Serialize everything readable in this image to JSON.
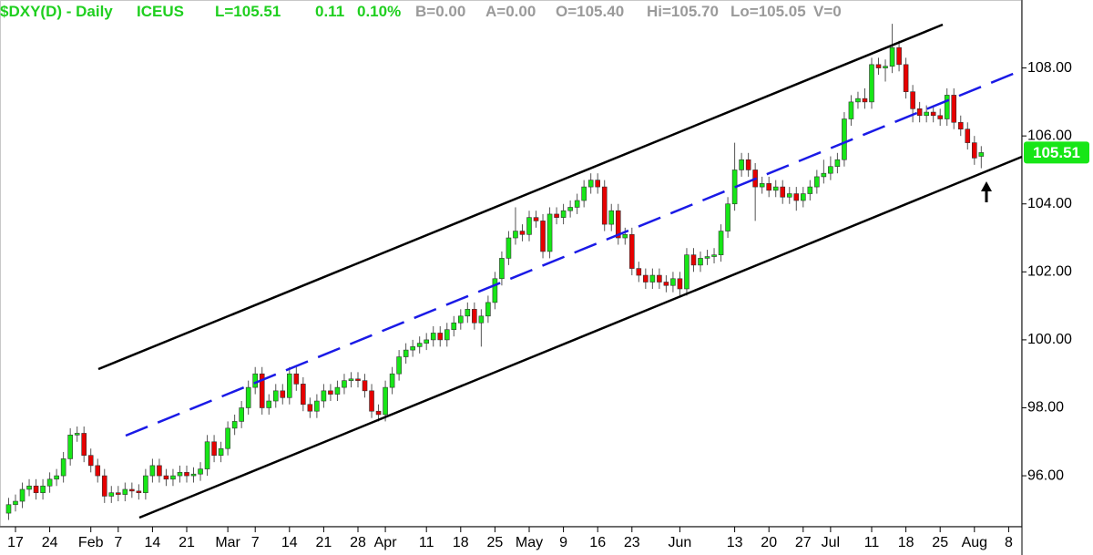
{
  "header": {
    "symbol": "$DXY(D) - Daily",
    "exchange": "ICEUS",
    "last": "L=105.51",
    "change": "0.11",
    "change_pct": "0.10%",
    "bid": "B=0.00",
    "ask": "A=0.00",
    "open": "O=105.40",
    "high": "Hi=105.70",
    "low": "Lo=105.05",
    "volume": "V=0"
  },
  "chart_data": {
    "type": "candlestick",
    "up_color": "#17e617",
    "down_color": "#e60000",
    "ylim": [
      94.5,
      110
    ],
    "yticks": [
      {
        "value": 96,
        "label": "96.00"
      },
      {
        "value": 98,
        "label": "98.00"
      },
      {
        "value": 100,
        "label": "100.00"
      },
      {
        "value": 102,
        "label": "102.00"
      },
      {
        "value": 104,
        "label": "104.00"
      },
      {
        "value": 106,
        "label": "106.00"
      },
      {
        "value": 108,
        "label": "108.00"
      }
    ],
    "categories": [
      null,
      "17",
      null,
      null,
      null,
      null,
      "24",
      null,
      null,
      null,
      null,
      null,
      "Feb",
      null,
      null,
      null,
      "7",
      null,
      null,
      null,
      null,
      "14",
      null,
      null,
      null,
      null,
      "21",
      null,
      null,
      null,
      null,
      null,
      "Mar",
      null,
      null,
      null,
      "7",
      null,
      null,
      null,
      null,
      "14",
      null,
      null,
      null,
      null,
      "21",
      null,
      null,
      null,
      null,
      "28",
      null,
      null,
      null,
      "Apr",
      null,
      null,
      null,
      null,
      null,
      "11",
      null,
      null,
      null,
      null,
      "18",
      null,
      null,
      null,
      null,
      "25",
      null,
      null,
      null,
      null,
      "May",
      null,
      null,
      null,
      null,
      "9",
      null,
      null,
      null,
      null,
      "16",
      null,
      null,
      null,
      null,
      "23",
      null,
      null,
      null,
      null,
      null,
      null,
      "Jun",
      null,
      null,
      null,
      null,
      null,
      null,
      null,
      "13",
      null,
      null,
      null,
      null,
      "20",
      null,
      null,
      null,
      null,
      "27",
      null,
      null,
      null,
      "Jul",
      null,
      null,
      null,
      null,
      null,
      "11",
      null,
      null,
      null,
      null,
      "18",
      null,
      null,
      null,
      null,
      "25",
      null,
      null,
      null,
      null,
      "Aug",
      null,
      null,
      null,
      null,
      "8"
    ],
    "open": [
      94.9,
      95.15,
      95.25,
      95.6,
      95.7,
      95.5,
      95.7,
      95.9,
      96.0,
      96.5,
      97.2,
      97.25,
      96.6,
      96.3,
      96.0,
      95.4,
      95.5,
      95.45,
      95.6,
      95.55,
      95.5,
      96.0,
      96.3,
      96.0,
      95.9,
      96.0,
      96.1,
      96.0,
      96.05,
      96.2,
      97.0,
      96.6,
      96.8,
      97.4,
      97.6,
      98.0,
      98.6,
      99.0,
      98.0,
      98.2,
      98.5,
      98.3,
      99.0,
      98.7,
      98.1,
      97.9,
      98.2,
      98.5,
      98.4,
      98.6,
      98.8,
      98.85,
      98.8,
      98.5,
      97.9,
      97.8,
      98.6,
      99.0,
      99.5,
      99.7,
      99.8,
      99.9,
      100.0,
      100.2,
      100.0,
      100.3,
      100.5,
      100.7,
      100.9,
      100.5,
      100.7,
      101.1,
      101.8,
      102.4,
      103.0,
      103.2,
      103.1,
      103.6,
      103.5,
      102.6,
      103.7,
      103.6,
      103.8,
      103.9,
      104.1,
      104.5,
      104.7,
      104.5,
      103.4,
      103.8,
      103.0,
      103.1,
      102.1,
      101.9,
      101.7,
      101.9,
      101.7,
      101.6,
      101.8,
      101.5,
      102.5,
      102.2,
      102.4,
      102.45,
      102.5,
      103.2,
      104.0,
      105.0,
      105.3,
      105.0,
      104.5,
      104.6,
      104.4,
      104.5,
      104.2,
      104.3,
      104.1,
      104.3,
      104.5,
      104.8,
      104.9,
      105.1,
      105.3,
      106.5,
      107.0,
      107.1,
      107.0,
      108.1,
      108.0,
      108.05,
      108.6,
      108.1,
      107.3,
      106.8,
      106.6,
      106.7,
      106.6,
      106.5,
      107.2,
      106.4,
      106.2,
      105.8,
      105.4,
      null,
      null,
      null,
      null
    ],
    "high": [
      95.35,
      95.45,
      95.8,
      95.9,
      95.9,
      95.9,
      96.1,
      96.2,
      96.7,
      97.4,
      97.45,
      97.45,
      96.8,
      96.5,
      96.2,
      95.7,
      95.7,
      95.8,
      95.8,
      95.75,
      96.2,
      96.5,
      96.5,
      96.2,
      96.2,
      96.3,
      96.3,
      96.25,
      96.4,
      97.2,
      97.2,
      97.0,
      97.6,
      97.8,
      98.2,
      98.8,
      99.2,
      99.2,
      98.4,
      98.7,
      98.7,
      99.2,
      99.2,
      98.9,
      98.3,
      98.4,
      98.7,
      98.7,
      98.8,
      99.0,
      99.05,
      99.05,
      99.0,
      98.7,
      98.1,
      98.8,
      99.2,
      99.7,
      99.9,
      100.0,
      100.1,
      100.2,
      100.4,
      100.4,
      100.5,
      100.7,
      100.9,
      101.1,
      101.1,
      100.9,
      101.3,
      102.0,
      102.6,
      103.2,
      103.9,
      103.4,
      103.8,
      103.8,
      103.7,
      103.9,
      103.9,
      104.0,
      104.1,
      104.3,
      104.7,
      104.9,
      104.9,
      104.7,
      104.0,
      104.0,
      103.3,
      103.3,
      102.3,
      102.1,
      102.1,
      102.1,
      101.9,
      102.0,
      102.0,
      102.7,
      102.7,
      102.6,
      102.65,
      102.7,
      103.4,
      104.2,
      105.8,
      105.5,
      105.5,
      105.2,
      104.8,
      104.8,
      104.7,
      104.7,
      104.5,
      104.5,
      104.5,
      104.7,
      105.0,
      105.3,
      105.4,
      105.5,
      106.7,
      107.2,
      107.3,
      107.4,
      108.3,
      108.3,
      108.25,
      109.3,
      108.8,
      108.3,
      107.5,
      107.0,
      106.9,
      106.9,
      106.8,
      107.4,
      107.4,
      106.6,
      106.4,
      106.0,
      105.7,
      null,
      null,
      null,
      null
    ],
    "low": [
      94.7,
      94.95,
      95.05,
      95.4,
      95.3,
      95.3,
      95.5,
      95.7,
      95.8,
      96.3,
      97.0,
      96.4,
      96.1,
      95.8,
      95.2,
      95.2,
      95.25,
      95.25,
      95.35,
      95.3,
      95.3,
      95.8,
      95.8,
      95.7,
      95.7,
      95.8,
      95.8,
      95.8,
      95.85,
      96.0,
      96.4,
      96.4,
      96.6,
      97.2,
      97.4,
      97.8,
      98.4,
      97.8,
      97.8,
      98.0,
      98.1,
      98.1,
      98.5,
      97.9,
      97.7,
      97.7,
      98.0,
      98.2,
      98.2,
      98.4,
      98.6,
      98.6,
      98.3,
      97.7,
      97.6,
      97.6,
      98.4,
      98.8,
      99.3,
      99.5,
      99.6,
      99.7,
      99.8,
      99.8,
      99.8,
      100.1,
      100.3,
      100.5,
      100.3,
      99.8,
      100.5,
      100.9,
      101.6,
      102.2,
      102.8,
      102.9,
      102.9,
      103.3,
      102.4,
      102.4,
      103.4,
      103.4,
      103.6,
      103.7,
      103.9,
      104.3,
      104.3,
      103.2,
      103.2,
      102.8,
      102.8,
      101.9,
      101.7,
      101.5,
      101.5,
      101.5,
      101.4,
      101.4,
      101.3,
      101.3,
      102.0,
      102.0,
      102.2,
      102.25,
      102.3,
      103.0,
      103.8,
      104.8,
      104.8,
      103.5,
      104.3,
      104.2,
      104.2,
      104.0,
      104.0,
      103.8,
      103.9,
      104.1,
      104.3,
      104.6,
      104.7,
      104.9,
      105.1,
      106.3,
      106.8,
      106.8,
      106.8,
      107.8,
      107.6,
      107.85,
      107.9,
      107.1,
      106.4,
      106.4,
      106.4,
      106.4,
      106.3,
      106.3,
      106.2,
      106.0,
      105.6,
      105.15,
      105.05,
      null,
      null,
      null,
      null
    ],
    "close": [
      95.15,
      95.25,
      95.6,
      95.7,
      95.5,
      95.7,
      95.9,
      96.0,
      96.5,
      97.2,
      97.25,
      96.6,
      96.3,
      96.0,
      95.4,
      95.5,
      95.45,
      95.6,
      95.55,
      95.5,
      96.0,
      96.3,
      96.0,
      95.9,
      96.0,
      96.1,
      96.0,
      96.05,
      96.2,
      97.0,
      96.6,
      96.8,
      97.4,
      97.6,
      98.0,
      98.6,
      99.0,
      98.0,
      98.2,
      98.5,
      98.3,
      99.0,
      98.7,
      98.1,
      97.9,
      98.2,
      98.5,
      98.4,
      98.6,
      98.8,
      98.85,
      98.8,
      98.5,
      97.9,
      97.8,
      98.6,
      99.0,
      99.5,
      99.7,
      99.8,
      99.9,
      100.0,
      100.2,
      100.0,
      100.3,
      100.5,
      100.7,
      100.9,
      100.5,
      100.7,
      101.1,
      101.8,
      102.4,
      103.0,
      103.2,
      103.1,
      103.6,
      103.5,
      102.6,
      103.7,
      103.6,
      103.8,
      103.9,
      104.1,
      104.5,
      104.7,
      104.5,
      103.4,
      103.8,
      103.0,
      103.1,
      102.1,
      101.9,
      101.7,
      101.9,
      101.7,
      101.6,
      101.8,
      101.5,
      102.5,
      102.2,
      102.4,
      102.45,
      102.5,
      103.2,
      104.0,
      105.0,
      105.3,
      105.0,
      104.5,
      104.6,
      104.4,
      104.5,
      104.2,
      104.3,
      104.1,
      104.3,
      104.5,
      104.8,
      104.9,
      105.1,
      105.3,
      106.5,
      107.0,
      107.1,
      107.0,
      108.1,
      108.0,
      108.05,
      108.6,
      108.1,
      107.3,
      106.8,
      106.6,
      106.7,
      106.6,
      106.5,
      107.2,
      106.4,
      106.2,
      105.8,
      105.35,
      105.51,
      null,
      null,
      null,
      null
    ]
  }
}
